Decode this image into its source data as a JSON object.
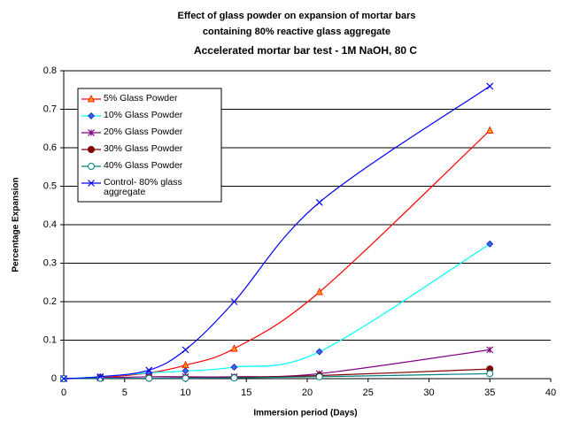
{
  "chart_data": {
    "type": "line",
    "title": "Effect of glass powder on expansion of mortar bars",
    "subtitle": "containing 80% reactive glass aggregate",
    "subtitle2": "Accelerated mortar bar test - 1M NaOH, 80 C",
    "x_label": "Immersion period (Days)",
    "y_label": "Percentage Expansion",
    "x": [
      0,
      3,
      7,
      10,
      14,
      21,
      35
    ],
    "xlim": [
      0,
      40
    ],
    "xticks": [
      0,
      5,
      10,
      15,
      20,
      25,
      30,
      35,
      40
    ],
    "ylim": [
      0,
      0.8
    ],
    "yticks": [
      0,
      0.1,
      0.2,
      0.3,
      0.4,
      0.5,
      0.6,
      0.7,
      0.8
    ],
    "grid": true,
    "legend": "upper-left",
    "series": [
      {
        "name": "5% Glass Powder",
        "color": "#ff0000",
        "marker": "triangle",
        "marker_color": "#ff9900",
        "values": [
          0,
          0.003,
          0.015,
          0.035,
          0.078,
          0.225,
          0.645
        ]
      },
      {
        "name": "10% Glass Powder",
        "color": "#00ffff",
        "marker": "diamond",
        "marker_color": "#3366ff",
        "values": [
          0,
          0.005,
          0.015,
          0.02,
          0.03,
          0.07,
          0.35
        ]
      },
      {
        "name": "20% Glass Powder",
        "color": "#800080",
        "marker": "star",
        "marker_color": "#800080",
        "values": [
          0,
          0.002,
          0.005,
          0.005,
          0.005,
          0.013,
          0.075
        ]
      },
      {
        "name": "30% Glass Powder",
        "color": "#800000",
        "marker": "circle",
        "marker_color": "#800000",
        "values": [
          0,
          0.001,
          0.001,
          0.002,
          0.003,
          0.008,
          0.025
        ]
      },
      {
        "name": "40% Glass Powder",
        "color": "#008080",
        "marker": "open-circle",
        "marker_color": "#008080",
        "values": [
          0,
          0.001,
          0.001,
          0.001,
          0.002,
          0.005,
          0.013
        ]
      },
      {
        "name": "Control- 80% glass aggregate",
        "color": "#0000ff",
        "marker": "x",
        "marker_color": "#0000ff",
        "values": [
          0,
          0.005,
          0.022,
          0.075,
          0.2,
          0.458,
          0.76
        ]
      }
    ]
  }
}
